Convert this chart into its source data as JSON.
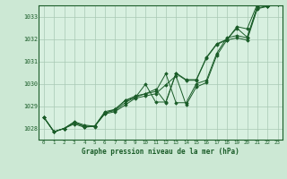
{
  "title": "Graphe pression niveau de la mer (hPa)",
  "background_color": "#cce8d4",
  "plot_background": "#d8f0e0",
  "grid_color": "#a8c8b4",
  "line_color": "#1a5c28",
  "x_labels": [
    "0",
    "1",
    "2",
    "3",
    "4",
    "5",
    "6",
    "7",
    "8",
    "9",
    "10",
    "11",
    "12",
    "13",
    "14",
    "15",
    "16",
    "17",
    "18",
    "19",
    "20",
    "21",
    "22",
    "23"
  ],
  "ylim": [
    1027.5,
    1033.5
  ],
  "yticks": [
    1028,
    1029,
    1030,
    1031,
    1032,
    1033
  ],
  "series1": [
    1028.5,
    1027.85,
    1028.0,
    1028.2,
    1028.05,
    1028.1,
    1028.65,
    1028.75,
    1029.05,
    1029.35,
    1029.45,
    1029.55,
    1029.95,
    1030.35,
    1029.05,
    1029.85,
    1030.05,
    1031.25,
    1031.95,
    1032.05,
    1031.95,
    1033.35,
    1033.45,
    1033.55
  ],
  "series2": [
    1028.5,
    1027.85,
    1028.0,
    1028.25,
    1028.1,
    1028.1,
    1028.7,
    1028.8,
    1029.15,
    1029.4,
    1029.55,
    1029.65,
    1030.45,
    1029.15,
    1029.15,
    1030.0,
    1030.15,
    1031.35,
    1032.05,
    1032.15,
    1032.05,
    1033.45,
    1033.55,
    1033.65
  ],
  "series3": [
    1028.5,
    1027.85,
    1028.0,
    1028.3,
    1028.15,
    1028.1,
    1028.75,
    1028.85,
    1029.25,
    1029.45,
    1029.55,
    1029.75,
    1029.15,
    1030.45,
    1030.15,
    1030.15,
    1031.15,
    1031.75,
    1031.95,
    1032.55,
    1032.45,
    1033.55,
    1033.45,
    1033.55
  ],
  "series4": [
    1028.5,
    1027.85,
    1028.0,
    1028.28,
    1028.08,
    1028.08,
    1028.68,
    1028.85,
    1029.25,
    1029.38,
    1029.98,
    1029.18,
    1029.18,
    1030.48,
    1030.18,
    1030.18,
    1031.18,
    1031.78,
    1031.98,
    1032.48,
    1032.08,
    1033.38,
    1033.48,
    1033.58
  ]
}
